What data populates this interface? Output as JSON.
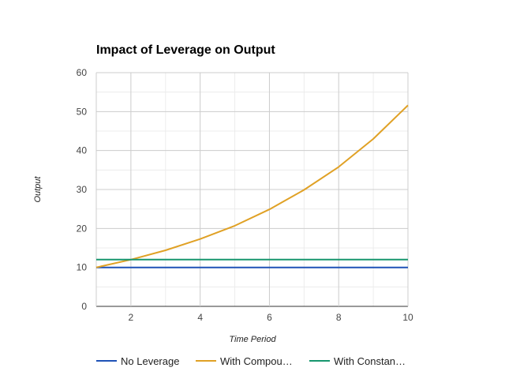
{
  "chart_data": {
    "type": "line",
    "title": "Impact of Leverage on Output",
    "xlabel": "Time Period",
    "ylabel": "Output",
    "xlim": [
      1,
      10
    ],
    "ylim": [
      0,
      60
    ],
    "x_ticks": [
      "2",
      "4",
      "6",
      "8",
      "10"
    ],
    "y_ticks": [
      "0",
      "10",
      "20",
      "30",
      "40",
      "50",
      "60"
    ],
    "x": [
      1,
      2,
      3,
      4,
      5,
      6,
      7,
      8,
      9,
      10
    ],
    "series": [
      {
        "name": "No Leverage",
        "legend_label": "No Leverage",
        "color": "#1f52b7",
        "values": [
          10,
          10,
          10,
          10,
          10,
          10,
          10,
          10,
          10,
          10
        ]
      },
      {
        "name": "With Compou…",
        "legend_label": "With Compou…",
        "color": "#e0a125",
        "values": [
          10,
          12.0,
          14.4,
          17.3,
          20.7,
          24.9,
          29.9,
          35.8,
          43.0,
          51.6
        ]
      },
      {
        "name": "With Constan…",
        "legend_label": "With Constan…",
        "color": "#17966e",
        "values": [
          12,
          12,
          12,
          12,
          12,
          12,
          12,
          12,
          12,
          12
        ]
      }
    ],
    "grid": true,
    "legend_position": "bottom"
  }
}
